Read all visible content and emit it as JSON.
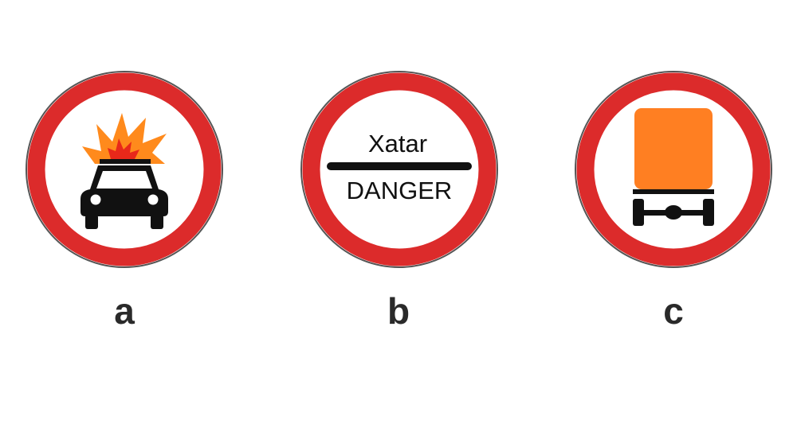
{
  "colors": {
    "ring_red": "#dc2b2b",
    "ring_outline": "#555555",
    "inner_white": "#ffffff",
    "symbol_black": "#111111",
    "flame_orange": "#ff8a1c",
    "flame_red": "#e8281a",
    "cargo_orange": "#ff7f22",
    "label_gray": "#2a2a2a"
  },
  "signs": [
    {
      "label": "a",
      "symbol": "car-carrying-explosives-icon"
    },
    {
      "label": "b",
      "symbol": "danger-bar-icon",
      "text_top": "Xatar",
      "text_bottom": "DANGER"
    },
    {
      "label": "c",
      "symbol": "truck-dangerous-goods-icon"
    }
  ]
}
